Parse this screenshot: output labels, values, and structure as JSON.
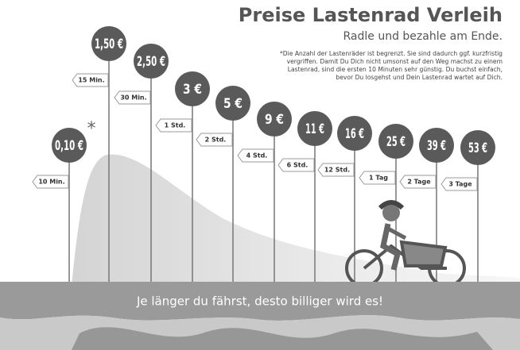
{
  "header": {
    "title": "Preise Lastenrad Verleih",
    "subtitle": "Radle und bezahle am Ende."
  },
  "note": [
    "*Die Anzahl der Lastenräder ist begrenzt. Sie sind dadurch ggf. kurzfristig",
    "vergriffen. Damit Du Dich nicht umsonst auf den Weg machst zu einem",
    "Lastenrad, sind die ersten 10 Minuten sehr günstig. Du buchst einfach,",
    "bevor Du losgehst und Dein Lastenrad wartet auf Dich."
  ],
  "items": [
    {
      "price": "0,10 €",
      "mark": "*",
      "duration": "10 Min."
    },
    {
      "price": "1,50 €",
      "duration": "15 Min."
    },
    {
      "price": "2,50 €",
      "duration": "30 Min."
    },
    {
      "price": "3 €",
      "duration": "1 Std."
    },
    {
      "price": "5 €",
      "duration": "2 Std."
    },
    {
      "price": "9 €",
      "duration": "4 Std."
    },
    {
      "price": "11 €",
      "duration": "6 Std."
    },
    {
      "price": "16 €",
      "duration": "12 Std."
    },
    {
      "price": "25 €",
      "duration": "1 Tag"
    },
    {
      "price": "39 €",
      "duration": "2 Tage"
    },
    {
      "price": "53 €",
      "duration": "3 Tage"
    }
  ],
  "slogan": "Je länger du fährst, desto billiger wird es!"
}
